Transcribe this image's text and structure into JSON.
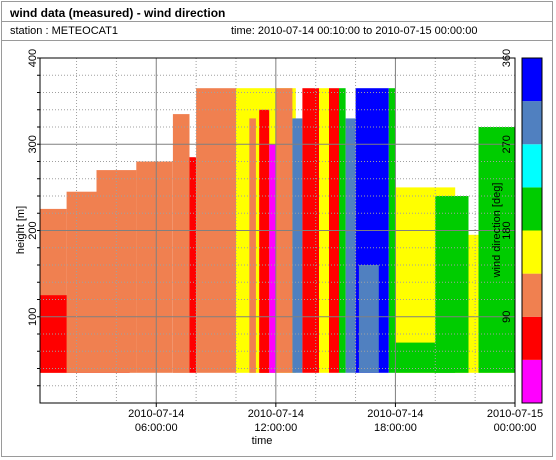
{
  "header": {
    "title": "wind data (measured) - wind direction",
    "station": "station : METEOCAT1",
    "time_range": "time: 2010-07-14 00:10:00 to 2010-07-15 00:00:00"
  },
  "chart_data": {
    "type": "heatmap",
    "title": "wind data (measured) - wind direction",
    "xlabel": "time",
    "ylabel": "height [m]",
    "xlim": [
      "2010-07-14 00:10:00",
      "2010-07-15 00:00:00"
    ],
    "ylim": [
      0,
      400
    ],
    "yticks": [
      100,
      200,
      300,
      400
    ],
    "xticks": [
      {
        "time": "2010-07-14 06:00:00",
        "label_date": "2010-07-14",
        "label_time": "06:00:00"
      },
      {
        "time": "2010-07-14 12:00:00",
        "label_date": "2010-07-14",
        "label_time": "12:00:00"
      },
      {
        "time": "2010-07-14 18:00:00",
        "label_date": "2010-07-14",
        "label_time": "18:00:00"
      },
      {
        "time": "2010-07-15 00:00:00",
        "label_date": "2010-07-15",
        "label_time": "00:00:00"
      }
    ],
    "grid": true,
    "colorbar": {
      "label": "wind direction [deg]",
      "ticks": [
        90,
        180,
        270,
        360
      ],
      "range": [
        0,
        360
      ],
      "bins": [
        {
          "from": 0,
          "to": 45,
          "color": "#ff00ff"
        },
        {
          "from": 45,
          "to": 90,
          "color": "#ff0000"
        },
        {
          "from": 90,
          "to": 135,
          "color": "#f08050"
        },
        {
          "from": 135,
          "to": 180,
          "color": "#ffff00"
        },
        {
          "from": 180,
          "to": 225,
          "color": "#00cc00"
        },
        {
          "from": 225,
          "to": 270,
          "color": "#00ffff"
        },
        {
          "from": 270,
          "to": 315,
          "color": "#5080c0"
        },
        {
          "from": 315,
          "to": 360,
          "color": "#0000ff"
        }
      ]
    },
    "segments": [
      {
        "start": "2010-07-14 00:10:00",
        "end": "2010-07-14 01:30:00",
        "direction": 110,
        "top": 225
      },
      {
        "start": "2010-07-14 00:10:00",
        "end": "2010-07-14 04:40:00",
        "direction": 70,
        "top": 125
      },
      {
        "start": "2010-07-14 01:30:00",
        "end": "2010-07-14 03:00:00",
        "direction": 110,
        "top": 245
      },
      {
        "start": "2010-07-14 03:00:00",
        "end": "2010-07-14 05:00:00",
        "direction": 110,
        "top": 270
      },
      {
        "start": "2010-07-14 05:00:00",
        "end": "2010-07-14 06:50:00",
        "direction": 110,
        "top": 280
      },
      {
        "start": "2010-07-14 06:50:00",
        "end": "2010-07-14 07:40:00",
        "direction": 110,
        "top": 335
      },
      {
        "start": "2010-07-14 07:40:00",
        "end": "2010-07-14 08:00:00",
        "direction": 70,
        "top": 285
      },
      {
        "start": "2010-07-14 08:00:00",
        "end": "2010-07-14 10:00:00",
        "direction": 110,
        "top": 365
      },
      {
        "start": "2010-07-14 10:00:00",
        "end": "2010-07-14 13:00:00",
        "direction": 160,
        "top": 365
      },
      {
        "start": "2010-07-14 10:40:00",
        "end": "2010-07-14 11:00:00",
        "direction": 110,
        "top": 330
      },
      {
        "start": "2010-07-14 11:10:00",
        "end": "2010-07-14 11:40:00",
        "direction": 70,
        "top": 340
      },
      {
        "start": "2010-07-14 11:40:00",
        "end": "2010-07-14 12:00:00",
        "direction": 20,
        "top": 300
      },
      {
        "start": "2010-07-14 12:00:00",
        "end": "2010-07-14 12:50:00",
        "direction": 110,
        "top": 365
      },
      {
        "start": "2010-07-14 12:50:00",
        "end": "2010-07-14 13:20:00",
        "direction": 290,
        "top": 330
      },
      {
        "start": "2010-07-14 13:20:00",
        "end": "2010-07-14 14:10:00",
        "direction": 70,
        "top": 365
      },
      {
        "start": "2010-07-14 14:10:00",
        "end": "2010-07-14 14:40:00",
        "direction": 160,
        "top": 365
      },
      {
        "start": "2010-07-14 14:40:00",
        "end": "2010-07-14 15:10:00",
        "direction": 70,
        "top": 365
      },
      {
        "start": "2010-07-14 15:10:00",
        "end": "2010-07-14 15:30:00",
        "direction": 200,
        "top": 365
      },
      {
        "start": "2010-07-14 15:30:00",
        "end": "2010-07-14 16:00:00",
        "direction": 290,
        "top": 330
      },
      {
        "start": "2010-07-14 16:00:00",
        "end": "2010-07-14 17:40:00",
        "direction": 340,
        "top": 365
      },
      {
        "start": "2010-07-14 16:10:00",
        "end": "2010-07-14 17:10:00",
        "direction": 290,
        "top": 160
      },
      {
        "start": "2010-07-14 17:40:00",
        "end": "2010-07-14 18:00:00",
        "direction": 200,
        "top": 365
      },
      {
        "start": "2010-07-14 18:00:00",
        "end": "2010-07-14 21:00:00",
        "direction": 160,
        "top": 250
      },
      {
        "start": "2010-07-14 18:00:00",
        "end": "2010-07-14 21:00:00",
        "direction": 200,
        "top": 70
      },
      {
        "start": "2010-07-14 21:00:00",
        "end": "2010-07-14 22:10:00",
        "direction": 160,
        "top": 195
      },
      {
        "start": "2010-07-14 20:00:00",
        "end": "2010-07-14 21:40:00",
        "direction": 200,
        "top": 240
      },
      {
        "start": "2010-07-14 22:10:00",
        "end": "2010-07-15 00:00:00",
        "direction": 160,
        "top": 110
      },
      {
        "start": "2010-07-14 22:10:00",
        "end": "2010-07-15 00:00:00",
        "direction": 200,
        "top": 320
      }
    ]
  }
}
